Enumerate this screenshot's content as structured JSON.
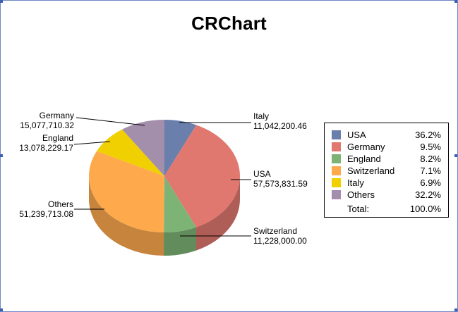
{
  "title": "CRChart",
  "chart_data": {
    "type": "pie",
    "title": "CRChart",
    "three_d": true,
    "legend_position": "right",
    "slices": [
      {
        "name": "Italy",
        "value": 11042200.46,
        "value_label": "11,042,200.46",
        "percent_label": "6.9%",
        "color": "#6a7fab"
      },
      {
        "name": "USA",
        "value": 57573831.59,
        "value_label": "57,573,831.59",
        "percent_label": "36.2%",
        "color": "#e0786f"
      },
      {
        "name": "Switzerland",
        "value": 11228000.0,
        "value_label": "11,228,000.00",
        "percent_label": "7.1%",
        "color": "#7db475"
      },
      {
        "name": "Others",
        "value": 51239713.08,
        "value_label": "51,239,713.08",
        "percent_label": "32.2%",
        "color": "#ffa94d"
      },
      {
        "name": "England",
        "value": 13078229.17,
        "value_label": "13,078,229.17",
        "percent_label": "8.2%",
        "color": "#f0d000"
      },
      {
        "name": "Germany",
        "value": 15077710.32,
        "value_label": "15,077,710.32",
        "percent_label": "9.5%",
        "color": "#a38eac"
      }
    ],
    "legend": [
      {
        "name": "USA",
        "percent": "36.2%",
        "color": "#6a7fab"
      },
      {
        "name": "Germany",
        "percent": "9.5%",
        "color": "#e0786f"
      },
      {
        "name": "England",
        "percent": "8.2%",
        "color": "#7db475"
      },
      {
        "name": "Switzerland",
        "percent": "7.1%",
        "color": "#ffa94d"
      },
      {
        "name": "Italy",
        "percent": "6.9%",
        "color": "#f0d000"
      },
      {
        "name": "Others",
        "percent": "32.2%",
        "color": "#a38eac"
      }
    ],
    "legend_total_label": "Total:",
    "legend_total_value": "100.0%"
  }
}
